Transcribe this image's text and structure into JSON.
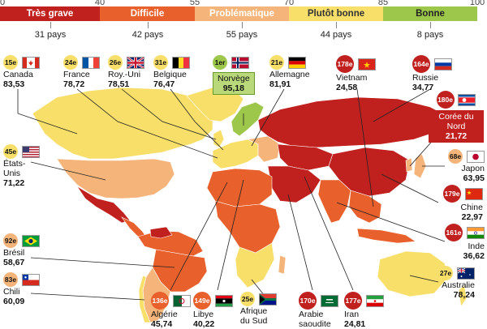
{
  "scale": {
    "ticks": [
      "0",
      "40",
      "55",
      "70",
      "85",
      "100"
    ]
  },
  "bands": [
    {
      "label": "Très grave",
      "count": "31 pays",
      "color": "#c0211f"
    },
    {
      "label": "Difficile",
      "count": "42 pays",
      "color": "#e8602c"
    },
    {
      "label": "Problématique",
      "count": "55 pays",
      "color": "#f5b57a"
    },
    {
      "label": "Plutôt bonne",
      "count": "44 pays",
      "color": "#f7df6a"
    },
    {
      "label": "Bonne",
      "count": "8 pays",
      "color": "#9cc74a"
    }
  ],
  "countries": {
    "canada": {
      "rank": "15e",
      "name": "Canada",
      "score": "83,53"
    },
    "france": {
      "rank": "24e",
      "name": "France",
      "score": "78,72"
    },
    "uk": {
      "rank": "26e",
      "name": "Roy.-Uni",
      "score": "78,51"
    },
    "belgique": {
      "rank": "31e",
      "name": "Belgique",
      "score": "76,47"
    },
    "norvege": {
      "rank": "1er",
      "name": "Norvège",
      "score": "95,18"
    },
    "allemagne": {
      "rank": "21e",
      "name": "Allemagne",
      "score": "81,91"
    },
    "vietnam": {
      "rank": "178e",
      "name": "Vietnam",
      "score": "24,58"
    },
    "russie": {
      "rank": "164e",
      "name": "Russie",
      "score": "34,77"
    },
    "coree_nord": {
      "rank": "180e",
      "name": "Corée du Nord",
      "score": "21,72"
    },
    "japon": {
      "rank": "68e",
      "name": "Japon",
      "score": "63,95"
    },
    "chine": {
      "rank": "179e",
      "name": "Chine",
      "score": "22,97"
    },
    "inde": {
      "rank": "161e",
      "name": "Inde",
      "score": "36,62"
    },
    "australie": {
      "rank": "27e",
      "name": "Australie",
      "score": "78,24"
    },
    "etats_unis": {
      "rank": "45e",
      "name": "États-Unis",
      "score": "71,22"
    },
    "bresil": {
      "rank": "92e",
      "name": "Brésil",
      "score": "58,67"
    },
    "chili": {
      "rank": "83e",
      "name": "Chili",
      "score": "60,09"
    },
    "algerie": {
      "rank": "136e",
      "name": "Algérie",
      "score": "45,74"
    },
    "libye": {
      "rank": "149e",
      "name": "Libye",
      "score": "40,22"
    },
    "afrique_sud": {
      "rank": "25e",
      "name": "Afrique du Sud",
      "score": ""
    },
    "arabie": {
      "rank": "170e",
      "name": "Arabie saoudite",
      "score": ""
    },
    "iran": {
      "rank": "177e",
      "name": "Iran",
      "score": "24,81"
    }
  }
}
